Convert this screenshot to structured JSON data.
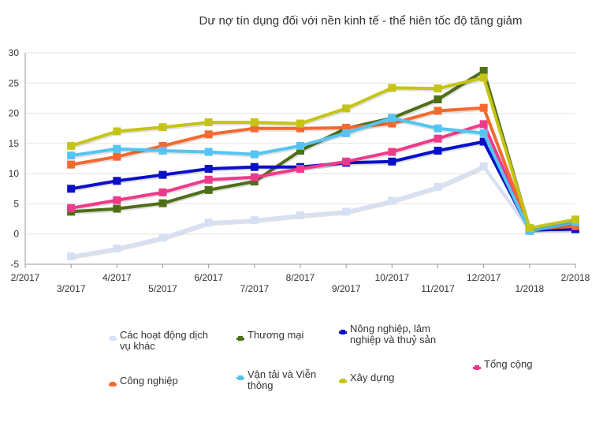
{
  "chart_data": {
    "type": "line",
    "title": "Dư nợ tín dụng đối với nền kinh tế - thể hiên tốc độ tăng giảm",
    "categories": [
      "2/2017",
      "3/2017",
      "4/2017",
      "5/2017",
      "6/2017",
      "7/2017",
      "8/2017",
      "9/2017",
      "10/2017",
      "11/2017",
      "12/2017",
      "1/2018",
      "2/2018"
    ],
    "ylim": [
      -5,
      30
    ],
    "yticks": [
      "-5",
      "0",
      "5",
      "10",
      "15",
      "20",
      "25",
      "30"
    ],
    "grid": true,
    "legend_position": "bottom",
    "series": [
      {
        "name": "Các hoạt động dịch vụ khác",
        "color": "#d6e0f5",
        "values": [
          null,
          -3.7,
          -2.4,
          -0.6,
          1.9,
          2.3,
          3.1,
          3.7,
          5.5,
          7.8,
          11.2,
          0.8,
          0.8
        ]
      },
      {
        "name": "Thương mại",
        "color": "#4f6e18",
        "values": [
          null,
          3.7,
          4.2,
          5.1,
          7.3,
          8.7,
          13.8,
          17.5,
          19.2,
          22.3,
          27.0,
          0.8,
          1.3
        ]
      },
      {
        "name": "Nông nghiệp, lâm nghiệp và thuỷ sản",
        "color": "#0a10c8",
        "values": [
          null,
          7.5,
          8.8,
          9.8,
          10.8,
          11.1,
          11.1,
          11.8,
          12.0,
          13.8,
          15.3,
          0.7,
          0.8
        ]
      },
      {
        "name": "Tổng cộng",
        "color": "#ee3a8c",
        "values": [
          null,
          4.3,
          5.6,
          6.9,
          9.0,
          9.4,
          10.8,
          12.0,
          13.6,
          15.8,
          18.2,
          0.9,
          1.5
        ]
      },
      {
        "name": "Công nghiệp",
        "color": "#f26a30",
        "values": [
          null,
          11.5,
          12.8,
          14.6,
          16.5,
          17.5,
          17.5,
          17.6,
          18.3,
          20.4,
          20.9,
          0.8,
          1.3
        ]
      },
      {
        "name": "Vận tải và Viễn thông",
        "color": "#55c4f2",
        "values": [
          null,
          13.0,
          14.1,
          13.8,
          13.6,
          13.2,
          14.6,
          16.7,
          19.2,
          17.5,
          16.7,
          0.5,
          2.0
        ]
      },
      {
        "name": "Xây dựng",
        "color": "#c5c416",
        "values": [
          null,
          14.6,
          17.0,
          17.7,
          18.5,
          18.5,
          18.3,
          20.8,
          24.2,
          24.1,
          25.9,
          1.0,
          2.4
        ]
      }
    ]
  }
}
